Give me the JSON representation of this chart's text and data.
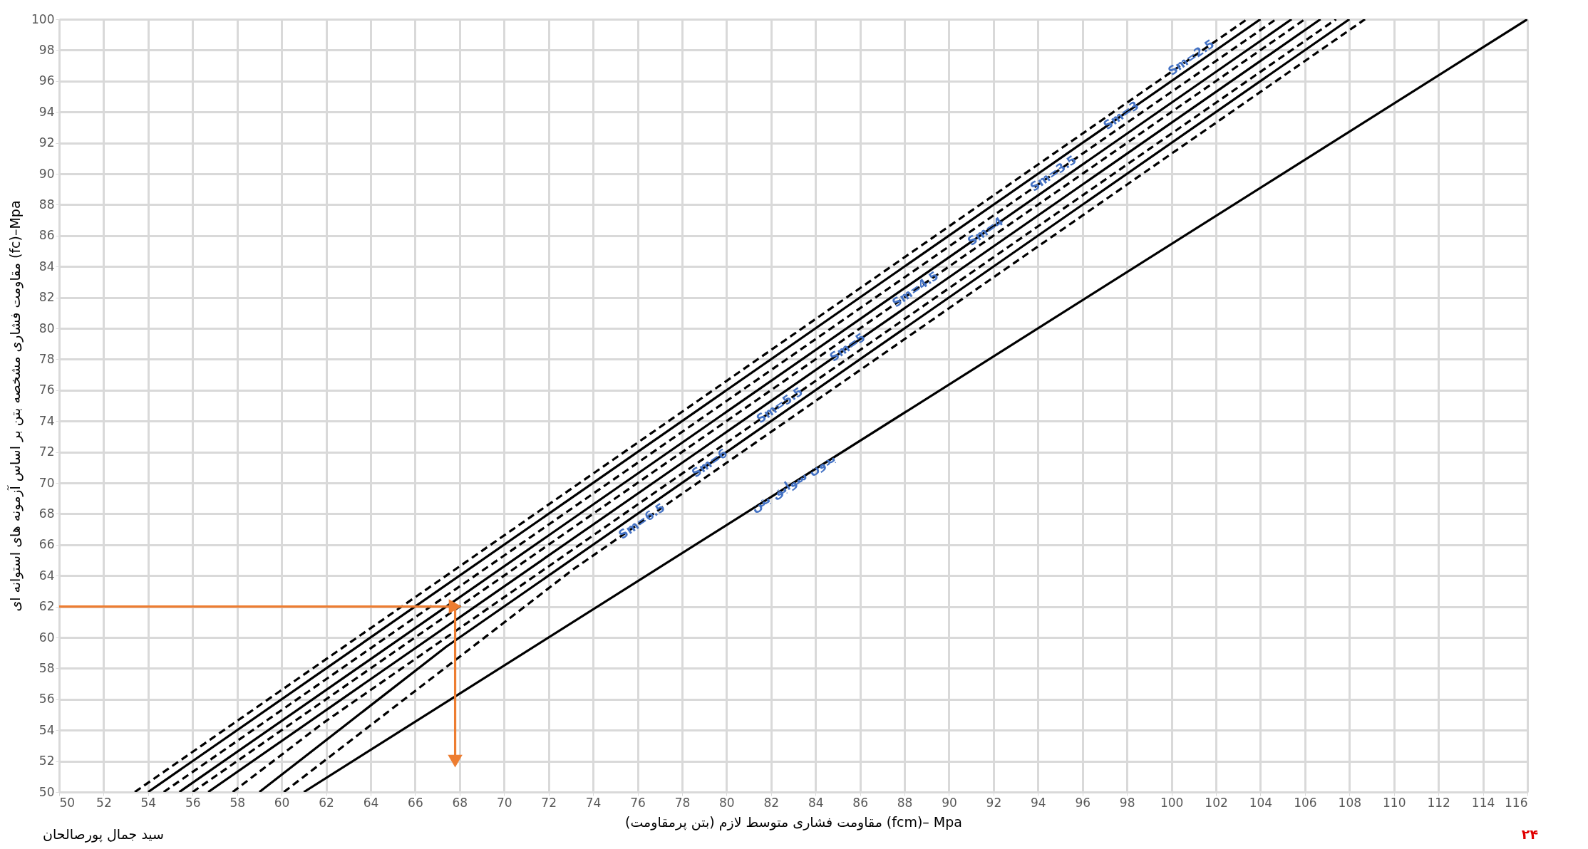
{
  "chart_data": {
    "type": "line",
    "xlabel": "مقاومت فشاری متوسط لازم (بتن پرمقاومت) (fcm)– Mpa",
    "ylabel": "مقاومت فشاری مشخصه بتن بر اساس آزمونه های استوانه ای (fc)–Mpa",
    "xlim": [
      50,
      116
    ],
    "xticks": [
      50,
      52,
      54,
      56,
      58,
      60,
      62,
      64,
      66,
      68,
      70,
      72,
      74,
      76,
      78,
      80,
      82,
      84,
      86,
      88,
      90,
      92,
      94,
      96,
      98,
      100,
      102,
      104,
      106,
      108,
      110,
      112,
      114,
      116
    ],
    "ylim": [
      50,
      100
    ],
    "yticks": [
      50,
      52,
      54,
      56,
      58,
      60,
      62,
      64,
      66,
      68,
      70,
      72,
      74,
      76,
      78,
      80,
      82,
      84,
      86,
      88,
      90,
      92,
      94,
      96,
      98,
      100
    ],
    "grid": true,
    "annotations": [
      "سید جمال پورصالحان",
      "۲۴"
    ],
    "series": [
      {
        "name": "Sm=2.5",
        "color": "#000000",
        "line_style": "dashed",
        "x": [
          53.4,
          103.4
        ],
        "values": [
          50,
          100
        ]
      },
      {
        "name": "Sm=3",
        "color": "#000000",
        "line_style": "solid",
        "x": [
          54,
          104
        ],
        "values": [
          50,
          100
        ]
      },
      {
        "name": "Sm=3.5",
        "color": "#000000",
        "line_style": "dashed",
        "x": [
          54.7,
          104.7
        ],
        "values": [
          50,
          100
        ]
      },
      {
        "name": "Sm=4",
        "color": "#000000",
        "line_style": "solid",
        "x": [
          55.4,
          105.4
        ],
        "values": [
          50,
          100
        ]
      },
      {
        "name": "Sm=4.5",
        "color": "#000000",
        "line_style": "dashed",
        "x": [
          56,
          106
        ],
        "values": [
          50,
          100
        ]
      },
      {
        "name": "Sm=5",
        "color": "#000000",
        "line_style": "solid",
        "x": [
          56.7,
          106.7
        ],
        "values": [
          50,
          100
        ]
      },
      {
        "name": "Sm=5.5",
        "color": "#000000",
        "line_style": "dashed",
        "x": [
          57.8,
          61.9,
          107.4
        ],
        "values": [
          50,
          54.5,
          100
        ]
      },
      {
        "name": "Sm=6",
        "color": "#000000",
        "line_style": "solid",
        "x": [
          59,
          67.4,
          108
        ],
        "values": [
          50,
          59.4,
          100
        ]
      },
      {
        "name": "Sm=6.5",
        "color": "#000000",
        "line_style": "dashed",
        "x": [
          60.1,
          73.1,
          108.7
        ],
        "values": [
          50,
          64.4,
          100
        ]
      },
      {
        "name": "بدون سوابق بتن",
        "color": "#000000",
        "line_style": "solid",
        "x": [
          61,
          116
        ],
        "values": [
          50,
          100
        ]
      },
      {
        "color": "#ed7d31",
        "line_style": "solid",
        "marker": "triangle",
        "x": [
          50,
          67.8,
          67.8
        ],
        "values": [
          62,
          62,
          52
        ]
      }
    ]
  }
}
